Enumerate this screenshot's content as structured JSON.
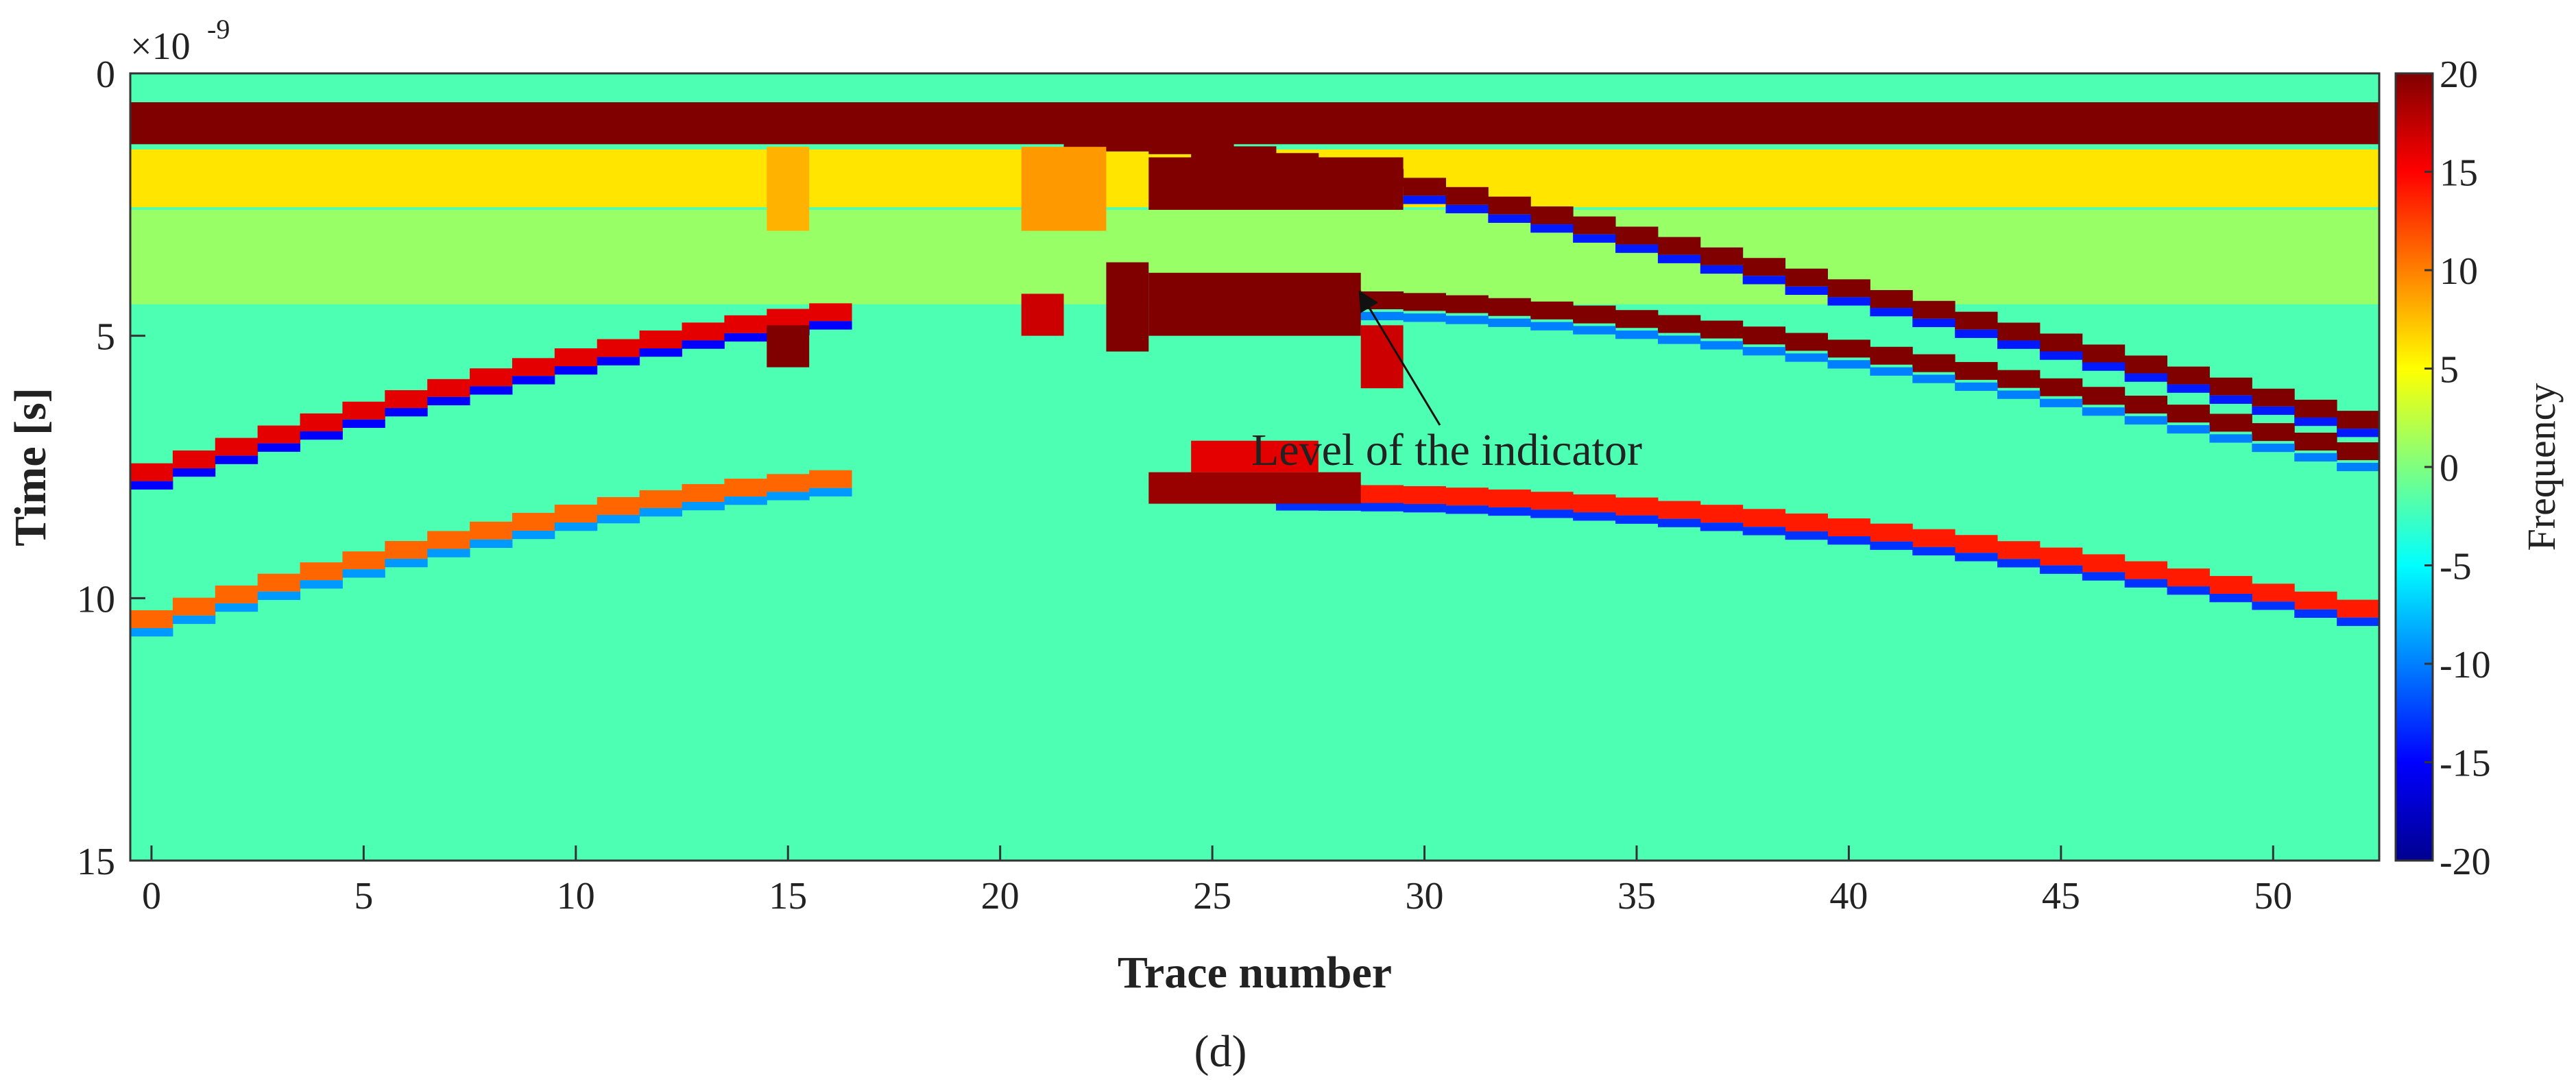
{
  "chart_data": {
    "type": "heatmap",
    "title": "",
    "xlabel": "Trace number",
    "ylabel": "Time [s]",
    "y_exponent_label": "×10",
    "y_exponent_power": "-9",
    "xlim": [
      -0.5,
      52.5
    ],
    "ylim": [
      0,
      15
    ],
    "y_reversed": true,
    "x_ticks": [
      0,
      5,
      10,
      15,
      20,
      25,
      30,
      35,
      40,
      45,
      50
    ],
    "y_ticks": [
      0,
      5,
      10,
      15
    ],
    "x_tick_labels": [
      "0",
      "5",
      "10",
      "15",
      "20",
      "25",
      "30",
      "35",
      "40",
      "45",
      "50"
    ],
    "y_tick_labels": [
      "0",
      "5",
      "10",
      "15"
    ],
    "colorbar": {
      "label": "Frequency",
      "range": [
        -20,
        20
      ],
      "ticks": [
        20,
        15,
        10,
        5,
        0,
        -5,
        -10,
        -15,
        -20
      ],
      "tick_labels": [
        "20",
        "15",
        "10",
        "5",
        "0",
        "-5",
        "-10",
        "-15",
        "-20"
      ],
      "colormap": "jet"
    },
    "traces": {
      "start": 0,
      "end": 52,
      "count": 53
    },
    "background_value": -2,
    "features": [
      {
        "kind": "flat_band",
        "t_center": 0.95,
        "half_width": 0.4,
        "value": 20,
        "x_from": 0,
        "x_to": 52
      },
      {
        "kind": "flat_band",
        "t_center": 2.0,
        "half_width": 0.55,
        "value": 6,
        "x_from": 0,
        "x_to": 52
      },
      {
        "kind": "flat_band",
        "t_center": 3.5,
        "half_width": 0.9,
        "value": 1,
        "x_from": 0,
        "x_to": 52
      },
      {
        "kind": "hyperbola",
        "apex_x": 21,
        "apex_t": 4.3,
        "edge_x": 0,
        "edge_t": 7.6,
        "from": 0,
        "to": 16,
        "value": 16
      },
      {
        "kind": "hyperbola",
        "apex_x": 21,
        "apex_t": 4.3,
        "edge_x": 0,
        "edge_t": 7.6,
        "from": 0,
        "to": 16,
        "value": -15,
        "offset": 0.25
      },
      {
        "kind": "hyperbola",
        "apex_x": 20,
        "apex_t": 7.6,
        "edge_x": 0,
        "edge_t": 10.4,
        "from": 0,
        "to": 16,
        "value": 11
      },
      {
        "kind": "hyperbola",
        "apex_x": 20,
        "apex_t": 7.6,
        "edge_x": 0,
        "edge_t": 10.4,
        "from": 0,
        "to": 16,
        "value": -9,
        "offset": 0.25
      },
      {
        "kind": "hyperbola",
        "apex_x": 22,
        "apex_t": 1.3,
        "edge_x": 52,
        "edge_t": 6.6,
        "from": 22,
        "to": 52,
        "value": 20
      },
      {
        "kind": "hyperbola",
        "apex_x": 22,
        "apex_t": 1.3,
        "edge_x": 52,
        "edge_t": 6.6,
        "from": 30,
        "to": 52,
        "value": -14,
        "offset": 0.25
      },
      {
        "kind": "hyperbola",
        "apex_x": 27,
        "apex_t": 4.3,
        "edge_x": 52,
        "edge_t": 7.2,
        "from": 27,
        "to": 52,
        "value": 20
      },
      {
        "kind": "hyperbola",
        "apex_x": 27,
        "apex_t": 4.3,
        "edge_x": 52,
        "edge_t": 7.2,
        "from": 27,
        "to": 52,
        "value": -10,
        "offset": 0.3
      },
      {
        "kind": "hyperbola",
        "apex_x": 27,
        "apex_t": 8.0,
        "edge_x": 52,
        "edge_t": 10.2,
        "from": 27,
        "to": 52,
        "value": 14
      },
      {
        "kind": "hyperbola",
        "apex_x": 27,
        "apex_t": 8.0,
        "edge_x": 52,
        "edge_t": 10.2,
        "from": 27,
        "to": 52,
        "value": -13,
        "offset": 0.25
      },
      {
        "kind": "block",
        "x_from": 24,
        "x_to": 28,
        "t_from": 3.8,
        "t_to": 5.0,
        "value": 20
      },
      {
        "kind": "block",
        "x_from": 23,
        "x_to": 23,
        "t_from": 3.6,
        "t_to": 5.3,
        "value": 20
      },
      {
        "kind": "block",
        "x_from": 29,
        "x_to": 29,
        "t_from": 4.8,
        "t_to": 6.0,
        "value": 17
      },
      {
        "kind": "block",
        "x_from": 21,
        "x_to": 21,
        "t_from": 4.2,
        "t_to": 5.0,
        "value": 17
      },
      {
        "kind": "block",
        "x_from": 15,
        "x_to": 15,
        "t_from": 4.8,
        "t_to": 5.6,
        "value": 20
      },
      {
        "kind": "block",
        "x_from": 24,
        "x_to": 28,
        "t_from": 7.6,
        "t_to": 8.2,
        "value": 19
      },
      {
        "kind": "block",
        "x_from": 25,
        "x_to": 27,
        "t_from": 7.0,
        "t_to": 7.6,
        "value": 16
      },
      {
        "kind": "block",
        "x_from": 24,
        "x_to": 29,
        "t_from": 1.6,
        "t_to": 2.6,
        "value": 20
      },
      {
        "kind": "block",
        "x_from": 21,
        "x_to": 22,
        "t_from": 1.4,
        "t_to": 3.0,
        "value": 9
      },
      {
        "kind": "block",
        "x_from": 15,
        "x_to": 15,
        "t_from": 1.4,
        "t_to": 3.0,
        "value": 8
      }
    ],
    "annotation": {
      "text": "Level of the indicator",
      "arrow_to_x": 28.5,
      "arrow_to_t": 4.2
    }
  },
  "caption": "(d)"
}
